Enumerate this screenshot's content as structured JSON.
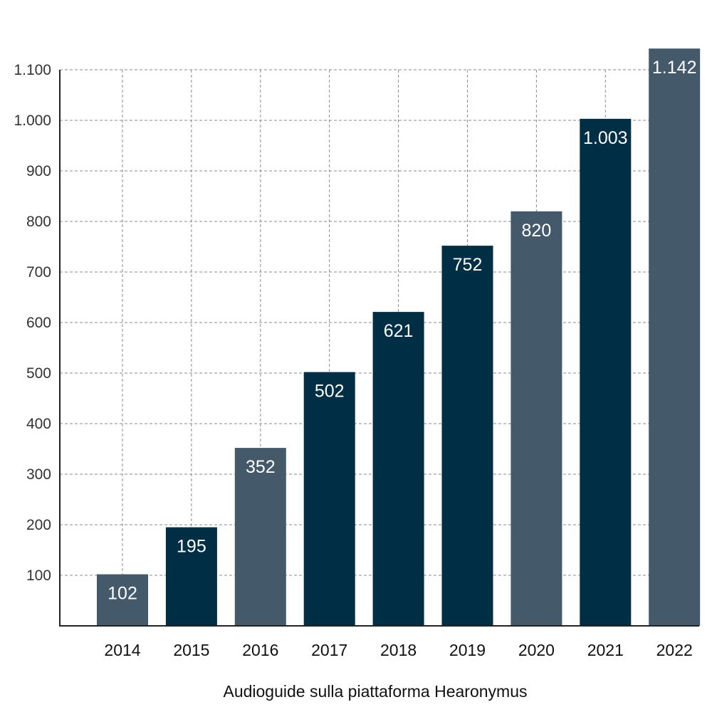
{
  "chart_data": {
    "type": "bar",
    "title": "",
    "xlabel": "Audioguide sulla piattaforma Hearonymus",
    "ylabel": "",
    "categories": [
      "2014",
      "2015",
      "2016",
      "2017",
      "2018",
      "2019",
      "2020",
      "2021",
      "2022"
    ],
    "values": [
      102,
      195,
      352,
      502,
      621,
      752,
      820,
      1003,
      1142
    ],
    "value_labels": [
      "102",
      "195",
      "352",
      "502",
      "621",
      "752",
      "820",
      "1.003",
      "1.142"
    ],
    "yticks": [
      100,
      200,
      300,
      400,
      500,
      600,
      700,
      800,
      900,
      1000,
      1100
    ],
    "ytick_labels": [
      "100",
      "200",
      "300",
      "400",
      "500",
      "600",
      "700",
      "800",
      "900",
      "1.000",
      "1.100"
    ],
    "ylim": [
      0,
      1100
    ],
    "grid": true,
    "legend": "none",
    "colors": {
      "dark": "#002e45",
      "slate": "#445a6a"
    },
    "bar_colors": [
      "slate",
      "dark",
      "slate",
      "dark",
      "dark",
      "dark",
      "slate",
      "dark",
      "slate"
    ]
  }
}
